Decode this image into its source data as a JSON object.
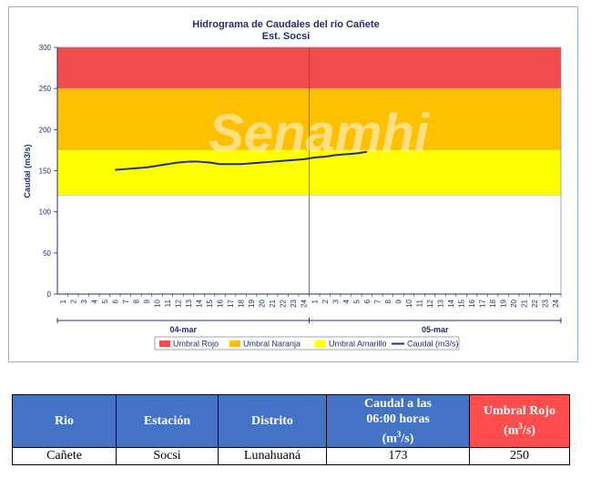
{
  "chart_data": {
    "type": "line",
    "title": "Hidrograma de Caudales  del río Cañete",
    "subtitle": "Est. Socsi",
    "ylabel": "Caudal  (m3/s)",
    "ylim": [
      0,
      300
    ],
    "yticks": [
      0,
      50,
      100,
      150,
      200,
      250,
      300
    ],
    "x_hour_ticks": [
      "1",
      "2",
      "3",
      "4",
      "5",
      "6",
      "7",
      "8",
      "9",
      "10",
      "11",
      "12",
      "13",
      "14",
      "15",
      "16",
      "17",
      "18",
      "19",
      "20",
      "21",
      "22",
      "23",
      "24",
      "1",
      "2",
      "3",
      "4",
      "5",
      "6",
      "7",
      "8",
      "9",
      "10",
      "11",
      "12",
      "13",
      "14",
      "15",
      "16",
      "17",
      "18",
      "19",
      "20",
      "21",
      "22",
      "23",
      "24"
    ],
    "days": [
      "04-mar",
      "05-mar"
    ],
    "bands": [
      {
        "name": "Umbral Rojo",
        "from": 250,
        "to": 300,
        "color": "#f24d4d"
      },
      {
        "name": "Umbral Naranja",
        "from": 175,
        "to": 250,
        "color": "#ffc000"
      },
      {
        "name": "Umbral Amarillo",
        "from": 120,
        "to": 175,
        "color": "#ffff00"
      }
    ],
    "series": [
      {
        "name": "Caudal (m3/s)",
        "color": "#1f2f8f",
        "x": [
          6,
          7,
          8,
          9,
          10,
          11,
          12,
          13,
          14,
          15,
          16,
          17,
          18,
          19,
          20,
          21,
          22,
          23,
          24,
          25,
          26,
          27,
          28,
          29,
          30
        ],
        "values": [
          151,
          152,
          153,
          154,
          156,
          158,
          160,
          161,
          161,
          160,
          158,
          158,
          158,
          159,
          160,
          161,
          162,
          163,
          164,
          166,
          167,
          169,
          170,
          171,
          173
        ]
      }
    ],
    "legend_position": "bottom",
    "watermark": "Senamhi"
  },
  "table": {
    "headers": [
      "Rio",
      "Estación",
      "Distrito",
      "Caudal a las 06:00 horas (m³/s)",
      "Umbral Rojo (m³/s)"
    ],
    "caudal_header": {
      "line1": "Caudal a las",
      "line2": "06:00 horas",
      "line3": "(m",
      "sup": "3",
      "line3_end": "/s)"
    },
    "umbral_header": {
      "line1": "Umbral Rojo",
      "line2": "(m",
      "sup": "3",
      "line2_end": "/s)"
    },
    "row": {
      "rio": "Cañete",
      "estacion": "Socsi",
      "distrito": "Lunahuaná",
      "caudal": "173",
      "umbral": "250"
    }
  }
}
